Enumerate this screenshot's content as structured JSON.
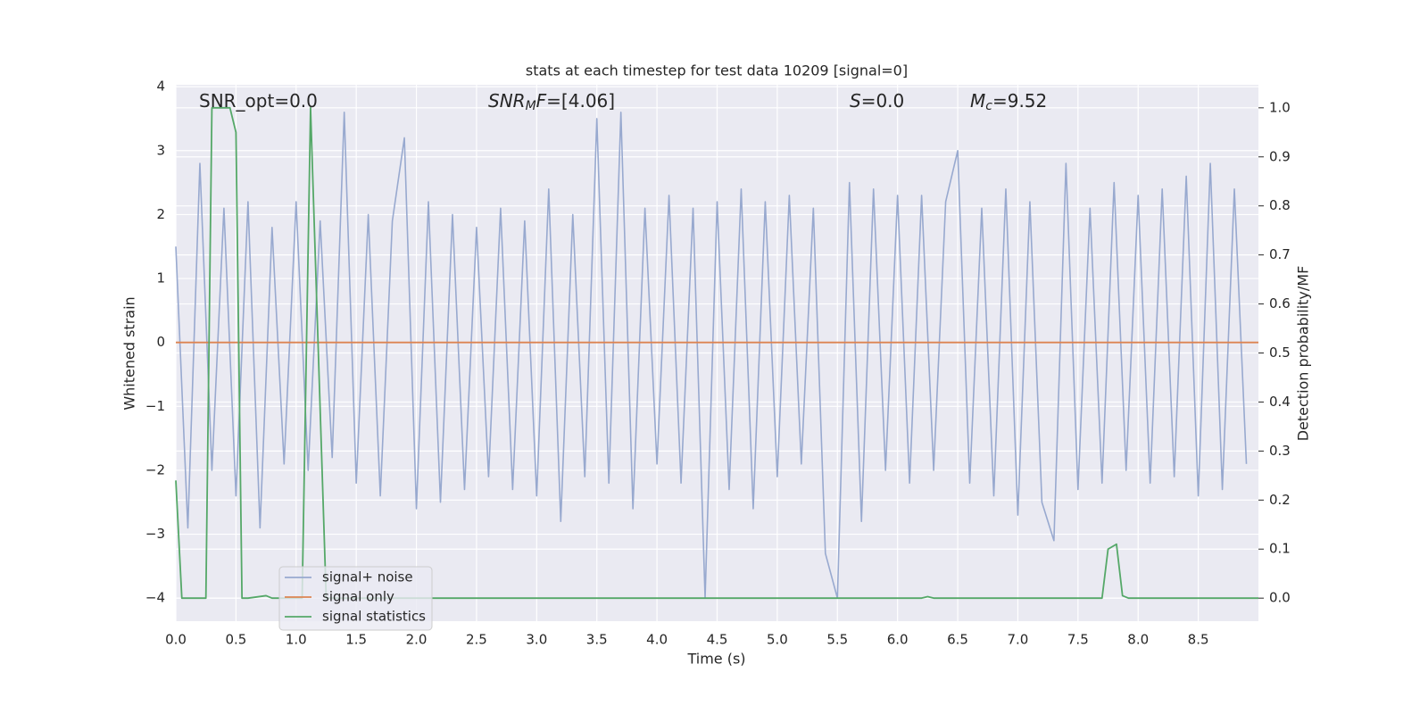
{
  "chart_data": {
    "type": "line",
    "title": "stats at each timestep for test data 10209 [signal=0]",
    "xlabel": "Time (s)",
    "ylabel": "Whitened strain",
    "y2label": "Detection probability/MF",
    "xlim": [
      0,
      9.0
    ],
    "ylim": [
      -4.36,
      4.03
    ],
    "y2lim": [
      -0.047,
      1.047
    ],
    "grid": true,
    "legend_loc": "lower left",
    "xticks": [
      {
        "value": 0,
        "label": "0.0"
      },
      0.5,
      {
        "value": 1,
        "label": "1.0"
      },
      1.5,
      {
        "value": 2,
        "label": "2.0"
      },
      2.5,
      {
        "value": 3,
        "label": "3.0"
      },
      3.5,
      {
        "value": 4,
        "label": "4.0"
      },
      4.5,
      {
        "value": 5,
        "label": "5.0"
      },
      5.5,
      {
        "value": 6,
        "label": "6.0"
      },
      6.5,
      {
        "value": 7,
        "label": "7.0"
      },
      7.5,
      {
        "value": 8,
        "label": "8.0"
      },
      8.5
    ],
    "yticks": [
      {
        "value": -4,
        "label": "−4"
      },
      {
        "value": -3,
        "label": "−3"
      },
      {
        "value": -2,
        "label": "−2"
      },
      {
        "value": -1,
        "label": "−1"
      },
      0,
      1,
      2,
      3,
      4
    ],
    "y2ticks": [
      {
        "value": 0,
        "label": "0.0"
      },
      0.1,
      0.2,
      0.3,
      0.4,
      0.5,
      0.6,
      0.7,
      0.8,
      0.9,
      {
        "value": 1,
        "label": "1.0"
      }
    ],
    "annotations": [
      {
        "parts": [
          {
            "text": "SNR_opt=0.0",
            "style": "normal"
          }
        ]
      },
      {
        "parts": [
          {
            "text": "SNR",
            "style": "italic"
          },
          {
            "text": "M",
            "style": "italic-sub"
          },
          {
            "text": "F",
            "style": "italic"
          },
          {
            "text": "=[4.06]",
            "style": "normal"
          }
        ]
      },
      {
        "parts": [
          {
            "text": "S",
            "style": "italic"
          },
          {
            "text": "=0.0",
            "style": "normal"
          }
        ]
      },
      {
        "parts": [
          {
            "text": "M",
            "style": "italic"
          },
          {
            "text": "c",
            "style": "italic-sub"
          },
          {
            "text": "=9.52",
            "style": "normal"
          }
        ]
      }
    ],
    "series": [
      {
        "name": "signal+ noise",
        "color": "#98a9cf",
        "x": [
          0.0,
          0.1,
          0.2,
          0.3,
          0.4,
          0.5,
          0.6,
          0.7,
          0.8,
          0.9,
          1.0,
          1.1,
          1.2,
          1.3,
          1.4,
          1.5,
          1.6,
          1.7,
          1.8,
          1.9,
          2.0,
          2.1,
          2.2,
          2.3,
          2.4,
          2.5,
          2.6,
          2.7,
          2.8,
          2.9,
          3.0,
          3.1,
          3.2,
          3.3,
          3.4,
          3.5,
          3.6,
          3.7,
          3.8,
          3.9,
          4.0,
          4.1,
          4.2,
          4.3,
          4.4,
          4.5,
          4.6,
          4.7,
          4.8,
          4.9,
          5.0,
          5.1,
          5.2,
          5.3,
          5.4,
          5.5,
          5.6,
          5.7,
          5.8,
          5.9,
          6.0,
          6.1,
          6.2,
          6.3,
          6.4,
          6.5,
          6.6,
          6.7,
          6.8,
          6.9,
          7.0,
          7.1,
          7.2,
          7.3,
          7.4,
          7.5,
          7.6,
          7.7,
          7.8,
          7.9,
          8.0,
          8.1,
          8.2,
          8.3,
          8.4,
          8.5,
          8.6,
          8.7,
          8.8,
          8.9
        ],
        "values": [
          1.5,
          -2.9,
          2.8,
          -2.0,
          2.1,
          -2.4,
          2.2,
          -2.9,
          1.8,
          -1.9,
          2.2,
          -2.0,
          1.9,
          -1.8,
          3.6,
          -2.2,
          2.0,
          -2.4,
          1.9,
          3.2,
          -2.6,
          2.2,
          -2.5,
          2.0,
          -2.3,
          1.8,
          -2.1,
          2.1,
          -2.3,
          1.9,
          -2.4,
          2.4,
          -2.8,
          2.0,
          -2.1,
          3.5,
          -2.2,
          3.6,
          -2.6,
          2.1,
          -1.9,
          2.3,
          -2.2,
          2.1,
          -4.0,
          2.2,
          -2.3,
          2.4,
          -2.6,
          2.2,
          -2.1,
          2.3,
          -1.9,
          2.1,
          -3.3,
          -4.0,
          2.5,
          -2.8,
          2.4,
          -2.0,
          2.3,
          -2.2,
          2.3,
          -2.0,
          2.2,
          3.0,
          -2.2,
          2.1,
          -2.4,
          2.4,
          -2.7,
          2.2,
          -2.5,
          -3.1,
          2.8,
          -2.3,
          2.1,
          -2.2,
          2.5,
          -2.0,
          2.3,
          -2.2,
          2.4,
          -2.1,
          2.6,
          -2.4,
          2.8,
          -2.3,
          2.4,
          -1.9
        ]
      },
      {
        "name": "signal only",
        "color": "#dd8452",
        "x": [
          0.0,
          9.0
        ],
        "values": [
          0,
          0
        ]
      },
      {
        "name": "signal statistics",
        "color": "#55a868",
        "axis": "y2",
        "x": [
          0.0,
          0.05,
          0.25,
          0.3,
          0.4,
          0.45,
          0.5,
          0.55,
          0.6,
          0.75,
          0.8,
          1.05,
          1.12,
          1.25,
          6.2,
          6.25,
          6.3,
          7.7,
          7.75,
          7.82,
          7.87,
          7.92,
          9.0
        ],
        "values": [
          0.24,
          0.0,
          0.0,
          1.0,
          1.0,
          1.0,
          0.95,
          0.0,
          0.0,
          0.005,
          0.0,
          0.0,
          1.0,
          0.0,
          0.0,
          0.003,
          0.0,
          0.0,
          0.1,
          0.11,
          0.005,
          0.0,
          0.0
        ]
      }
    ]
  }
}
